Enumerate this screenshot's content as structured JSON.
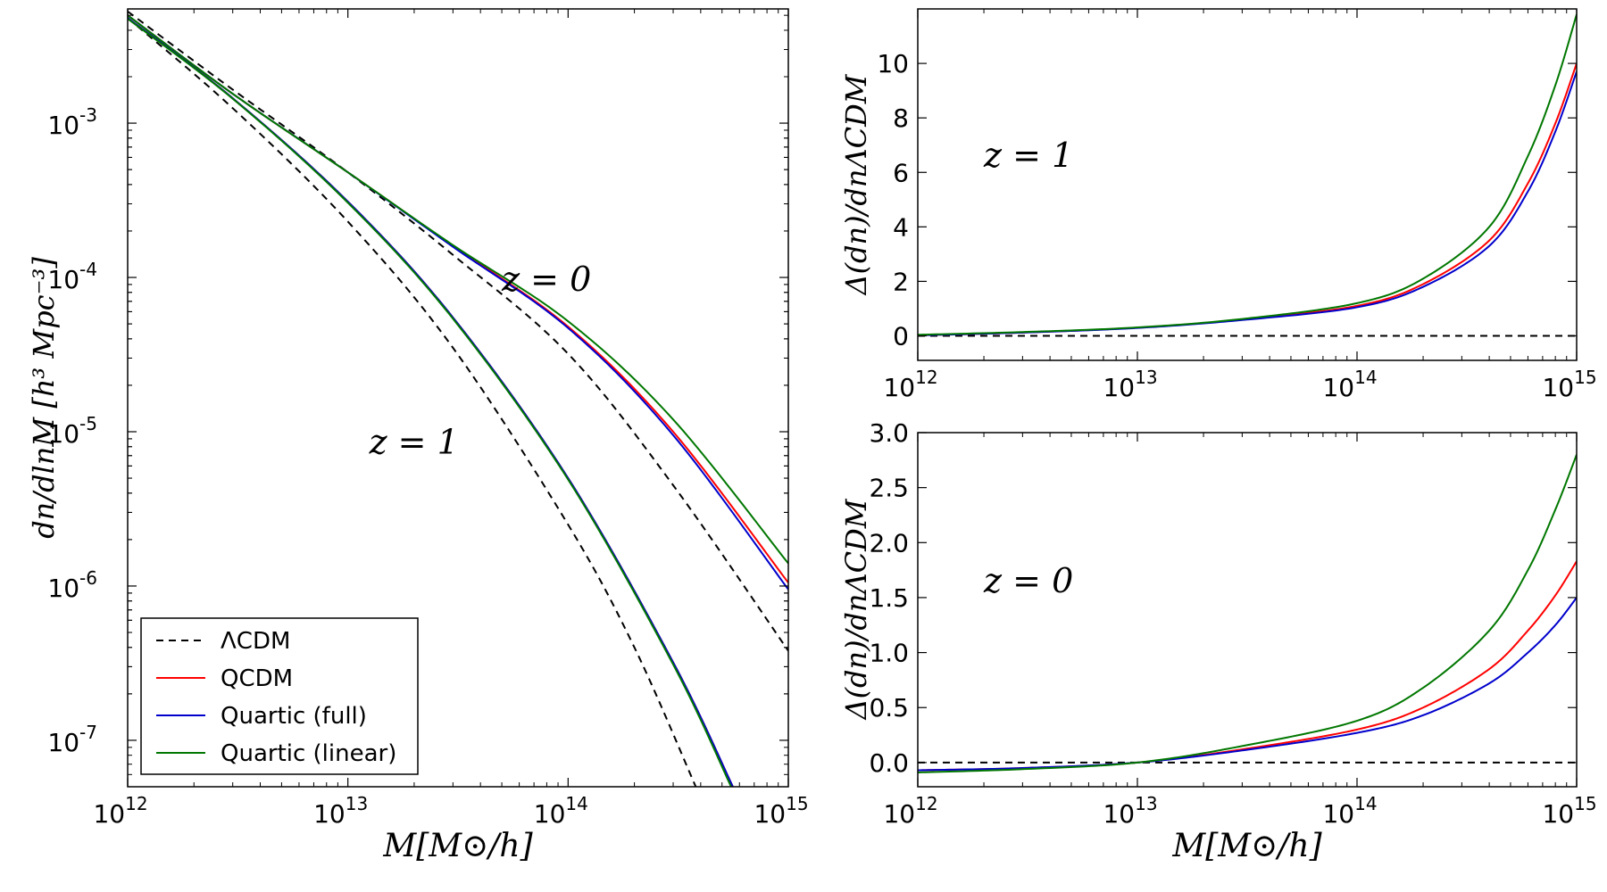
{
  "chart_data": [
    {
      "id": "mass-function",
      "type": "line",
      "xscale": "log",
      "yscale": "log",
      "xlim": [
        1000000000000.0,
        1000000000000000.0
      ],
      "ylim": [
        5e-08,
        0.0055
      ],
      "xlabel": "M[M⊙/h]",
      "ylabel": "dn/dlnM  [h³ Mpc⁻³]",
      "x_ticks": [
        {
          "value": 1000000000000.0,
          "base": "10",
          "exp": "12"
        },
        {
          "value": 10000000000000.0,
          "base": "10",
          "exp": "13"
        },
        {
          "value": 100000000000000.0,
          "base": "10",
          "exp": "14"
        },
        {
          "value": 1000000000000000.0,
          "base": "10",
          "exp": "15"
        }
      ],
      "y_ticks": [
        {
          "value": 0.001,
          "base": "10",
          "exp": "-3"
        },
        {
          "value": 0.0001,
          "base": "10",
          "exp": "-4"
        },
        {
          "value": 1e-05,
          "base": "10",
          "exp": "-5"
        },
        {
          "value": 1e-06,
          "base": "10",
          "exp": "-6"
        },
        {
          "value": 1e-07,
          "base": "10",
          "exp": "-7"
        }
      ],
      "annotations": [
        {
          "text": "z = 0",
          "x": 50000000000000.0,
          "y": 8.2e-05
        },
        {
          "text": "z = 1",
          "x": 12500000000000.0,
          "y": 7.2e-06
        }
      ],
      "legend": {
        "position": "lower-left",
        "entries": [
          {
            "label": "ΛCDM",
            "color": "#000000",
            "dash": true
          },
          {
            "label": "QCDM",
            "color": "#ff0000",
            "dash": false
          },
          {
            "label": "Quartic (full)",
            "color": "#0000cc",
            "dash": false
          },
          {
            "label": "Quartic (linear)",
            "color": "#007700",
            "dash": false
          }
        ]
      },
      "series": [
        {
          "name": "ΛCDM z=0",
          "color": "#000000",
          "dash": true,
          "x": [
            1000000000000.0,
            3000000000000.0,
            10000000000000.0,
            30000000000000.0,
            100000000000000.0,
            300000000000000.0,
            1000000000000000.0
          ],
          "y": [
            0.0053,
            0.00165,
            0.00048,
            0.00014,
            3.2e-05,
            4.5e-06,
            3.8e-07
          ]
        },
        {
          "name": "QCDM z=0",
          "color": "#ff0000",
          "dash": false,
          "x": [
            1000000000000.0,
            3000000000000.0,
            10000000000000.0,
            30000000000000.0,
            100000000000000.0,
            300000000000000.0,
            1000000000000000.0
          ],
          "y": [
            0.005,
            0.00155,
            0.00048,
            0.00016,
            4.8e-05,
            1e-05,
            1.05e-06
          ]
        },
        {
          "name": "Quartic (full) z=0",
          "color": "#0000cc",
          "dash": false,
          "x": [
            1000000000000.0,
            3000000000000.0,
            10000000000000.0,
            30000000000000.0,
            100000000000000.0,
            300000000000000.0,
            1000000000000000.0
          ],
          "y": [
            0.005,
            0.00155,
            0.00048,
            0.000158,
            4.7e-05,
            9.5e-06,
            9.5e-07
          ]
        },
        {
          "name": "Quartic (linear) z=0",
          "color": "#007700",
          "dash": false,
          "x": [
            1000000000000.0,
            3000000000000.0,
            10000000000000.0,
            30000000000000.0,
            100000000000000.0,
            300000000000000.0,
            1000000000000000.0
          ],
          "y": [
            0.005,
            0.00155,
            0.00048,
            0.000162,
            5.2e-05,
            1.2e-05,
            1.4e-06
          ]
        },
        {
          "name": "ΛCDM z=1",
          "color": "#000000",
          "dash": true,
          "x": [
            1000000000000.0,
            3000000000000.0,
            10000000000000.0,
            30000000000000.0,
            100000000000000.0,
            200000000000000.0,
            380000000000000.0
          ],
          "y": [
            0.0048,
            0.00125,
            0.00023,
            3.5e-05,
            2.5e-06,
            4e-07,
            5e-08
          ]
        },
        {
          "name": "QCDM z=1",
          "color": "#ff0000",
          "dash": false,
          "x": [
            1000000000000.0,
            3000000000000.0,
            10000000000000.0,
            30000000000000.0,
            100000000000000.0,
            300000000000000.0,
            560000000000000.0
          ],
          "y": [
            0.0048,
            0.00145,
            0.00031,
            5.5e-05,
            5e-06,
            3.2e-07,
            5e-08
          ]
        },
        {
          "name": "Quartic (full) z=1",
          "color": "#0000cc",
          "dash": false,
          "x": [
            1000000000000.0,
            3000000000000.0,
            10000000000000.0,
            30000000000000.0,
            100000000000000.0,
            300000000000000.0,
            560000000000000.0
          ],
          "y": [
            0.0048,
            0.00145,
            0.00031,
            5.5e-05,
            5e-06,
            3.2e-07,
            5e-08
          ]
        },
        {
          "name": "Quartic (linear) z=1",
          "color": "#007700",
          "dash": false,
          "x": [
            1000000000000.0,
            3000000000000.0,
            10000000000000.0,
            30000000000000.0,
            100000000000000.0,
            300000000000000.0,
            550000000000000.0
          ],
          "y": [
            0.00475,
            0.00144,
            0.000305,
            5.4e-05,
            4.9e-06,
            3.1e-07,
            5e-08
          ]
        }
      ]
    },
    {
      "id": "ratio-z1",
      "type": "line",
      "xscale": "log",
      "yscale": "linear",
      "xlim": [
        1000000000000.0,
        1000000000000000.0
      ],
      "ylim": [
        -0.9,
        12
      ],
      "xlabel": "",
      "ylabel": "Δ(dn)/dnΛCDM",
      "y_ticks": [
        0,
        2,
        4,
        6,
        8,
        10
      ],
      "y_tick_labels": [
        "0",
        "2",
        "4",
        "6",
        "8",
        "10"
      ],
      "x_ticks": [
        {
          "value": 1000000000000.0,
          "base": "10",
          "exp": "12"
        },
        {
          "value": 10000000000000.0,
          "base": "10",
          "exp": "13"
        },
        {
          "value": 100000000000000.0,
          "base": "10",
          "exp": "14"
        },
        {
          "value": 1000000000000000.0,
          "base": "10",
          "exp": "15"
        }
      ],
      "annotations": [
        {
          "text": "z = 1",
          "x": 2000000000000.0,
          "y": 6.2
        }
      ],
      "series": [
        {
          "name": "ΛCDM",
          "color": "#000000",
          "dash": true,
          "x": [
            1000000000000.0,
            1000000000000000.0
          ],
          "y": [
            0,
            0
          ]
        },
        {
          "name": "QCDM",
          "color": "#ff0000",
          "dash": false,
          "x": [
            1000000000000.0,
            3000000000000.0,
            10000000000000.0,
            30000000000000.0,
            100000000000000.0,
            200000000000000.0,
            400000000000000.0,
            600000000000000.0,
            800000000000000.0,
            1000000000000000.0
          ],
          "y": [
            0.02,
            0.12,
            0.3,
            0.6,
            1.1,
            1.9,
            3.5,
            5.6,
            7.8,
            10.0
          ]
        },
        {
          "name": "Quartic (full)",
          "color": "#0000cc",
          "dash": false,
          "x": [
            1000000000000.0,
            3000000000000.0,
            10000000000000.0,
            30000000000000.0,
            100000000000000.0,
            200000000000000.0,
            400000000000000.0,
            600000000000000.0,
            800000000000000.0,
            1000000000000000.0
          ],
          "y": [
            0.02,
            0.12,
            0.29,
            0.58,
            1.05,
            1.8,
            3.3,
            5.3,
            7.5,
            9.7
          ]
        },
        {
          "name": "Quartic (linear)",
          "color": "#007700",
          "dash": false,
          "x": [
            1000000000000.0,
            3000000000000.0,
            10000000000000.0,
            30000000000000.0,
            100000000000000.0,
            200000000000000.0,
            400000000000000.0,
            600000000000000.0,
            800000000000000.0,
            1000000000000000.0
          ],
          "y": [
            0.04,
            0.14,
            0.31,
            0.62,
            1.2,
            2.1,
            4.0,
            6.6,
            9.2,
            11.8
          ]
        }
      ]
    },
    {
      "id": "ratio-z0",
      "type": "line",
      "xscale": "log",
      "yscale": "linear",
      "xlim": [
        1000000000000.0,
        1000000000000000.0
      ],
      "ylim": [
        -0.22,
        3.0
      ],
      "xlabel": "M[M⊙/h]",
      "ylabel": "Δ(dn)/dnΛCDM",
      "y_ticks": [
        0.0,
        0.5,
        1.0,
        1.5,
        2.0,
        2.5,
        3.0
      ],
      "y_tick_labels": [
        "0.0",
        "0.5",
        "1.0",
        "1.5",
        "2.0",
        "2.5",
        "3.0"
      ],
      "x_ticks": [
        {
          "value": 1000000000000.0,
          "base": "10",
          "exp": "12"
        },
        {
          "value": 10000000000000.0,
          "base": "10",
          "exp": "13"
        },
        {
          "value": 100000000000000.0,
          "base": "10",
          "exp": "14"
        },
        {
          "value": 1000000000000000.0,
          "base": "10",
          "exp": "15"
        }
      ],
      "annotations": [
        {
          "text": "z = 0",
          "x": 2000000000000.0,
          "y": 1.55
        }
      ],
      "series": [
        {
          "name": "ΛCDM",
          "color": "#000000",
          "dash": true,
          "x": [
            1000000000000.0,
            1000000000000000.0
          ],
          "y": [
            0,
            0
          ]
        },
        {
          "name": "QCDM",
          "color": "#ff0000",
          "dash": false,
          "x": [
            1000000000000.0,
            3000000000000.0,
            10000000000000.0,
            30000000000000.0,
            100000000000000.0,
            200000000000000.0,
            400000000000000.0,
            600000000000000.0,
            800000000000000.0,
            1000000000000000.0
          ],
          "y": [
            -0.07,
            -0.05,
            0.0,
            0.12,
            0.3,
            0.5,
            0.85,
            1.2,
            1.52,
            1.83
          ]
        },
        {
          "name": "Quartic (full)",
          "color": "#0000cc",
          "dash": false,
          "x": [
            1000000000000.0,
            3000000000000.0,
            10000000000000.0,
            30000000000000.0,
            100000000000000.0,
            200000000000000.0,
            400000000000000.0,
            600000000000000.0,
            800000000000000.0,
            1000000000000000.0
          ],
          "y": [
            -0.07,
            -0.05,
            0.0,
            0.11,
            0.27,
            0.43,
            0.72,
            1.0,
            1.25,
            1.5
          ]
        },
        {
          "name": "Quartic (linear)",
          "color": "#007700",
          "dash": false,
          "x": [
            1000000000000.0,
            3000000000000.0,
            10000000000000.0,
            30000000000000.0,
            100000000000000.0,
            200000000000000.0,
            400000000000000.0,
            600000000000000.0,
            800000000000000.0,
            1000000000000000.0
          ],
          "y": [
            -0.09,
            -0.06,
            0.0,
            0.15,
            0.38,
            0.68,
            1.2,
            1.75,
            2.3,
            2.8
          ]
        }
      ]
    }
  ]
}
